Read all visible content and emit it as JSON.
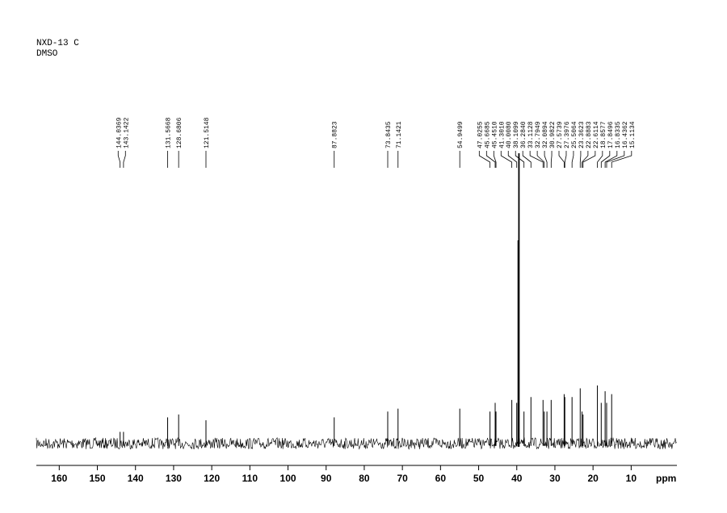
{
  "chart_data": {
    "type": "nmr",
    "title": "NXD-13 C",
    "subtitle": "DMSO",
    "xlabel": "ppm",
    "xlim": [
      166,
      -2
    ],
    "ylim": [
      -7,
      100
    ],
    "xticks": [
      160,
      150,
      140,
      130,
      120,
      110,
      100,
      90,
      80,
      70,
      60,
      50,
      40,
      30,
      20,
      10
    ],
    "color": "#000000",
    "peaks": {
      "x": [
        144.0369,
        143.1422,
        131.5668,
        128.6806,
        121.5148,
        87.8823,
        73.8435,
        71.1421,
        54.9499,
        47.0255,
        45.6685,
        45.451,
        41.301,
        40.008,
        38.1099,
        36.284,
        33.1128,
        32.7949,
        32.0894,
        30.9822,
        27.5739,
        27.3976,
        25.5064,
        23.3623,
        22.8883,
        22.6114,
        18.8577,
        17.8496,
        16.8335,
        16.4362,
        15.1134
      ],
      "x_labels": [
        "144.0369",
        "143.1422",
        "131.5668",
        "128.6806",
        "121.5148",
        "87.8823",
        "73.8435",
        "71.1421",
        "54.9499",
        "47.0255",
        "45.6685",
        "45.4510",
        "41.3010",
        "40.0080",
        "38.1099",
        "36.2840",
        "33.1128",
        "32.7949",
        "32.0894",
        "30.9822",
        "27.5739",
        "27.3976",
        "25.5064",
        "23.3623",
        "22.8883",
        "22.6114",
        "18.8577",
        "17.8496",
        "16.8335",
        "16.4362",
        "15.1134"
      ],
      "values": [
        4,
        4,
        9,
        10,
        8,
        9,
        11,
        12,
        12,
        11,
        14,
        11,
        15,
        14,
        11,
        16,
        15,
        11,
        11,
        15,
        17,
        16,
        16,
        19,
        11,
        10,
        20,
        14,
        18,
        14,
        17
      ]
    },
    "solvent": {
      "x": [
        39.69,
        39.52,
        39.35
      ],
      "values": [
        70,
        100,
        100
      ]
    }
  }
}
